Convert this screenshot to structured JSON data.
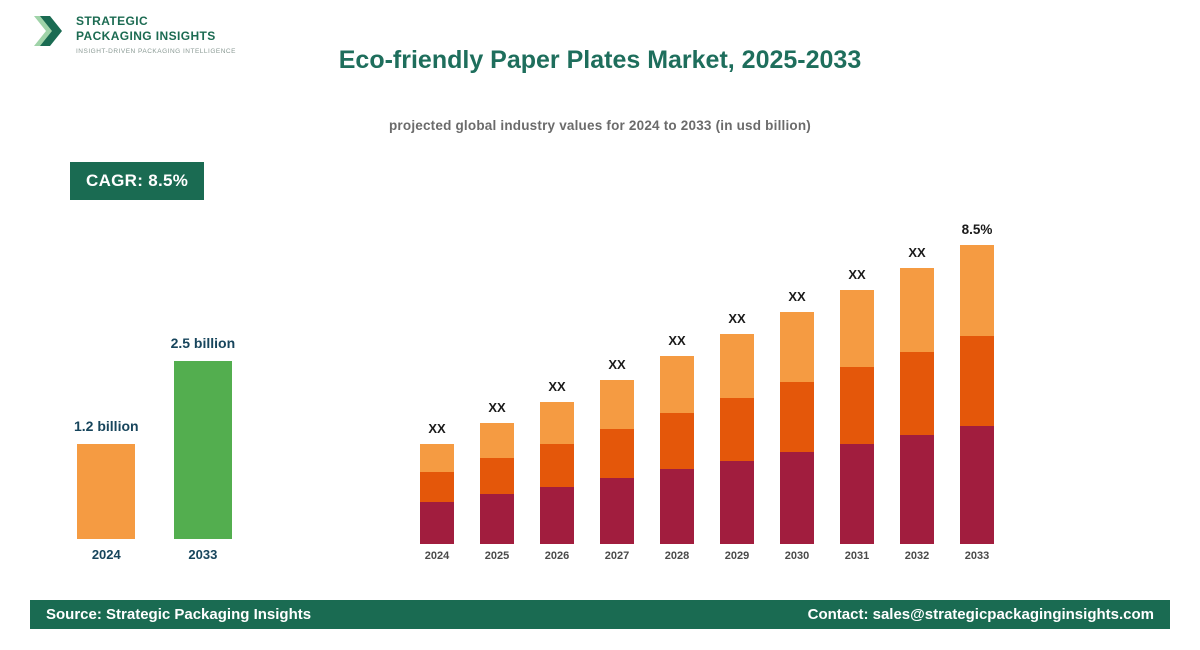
{
  "logo": {
    "line1": "STRATEGIC",
    "line2": "PACKAGING INSIGHTS",
    "tagline": "INSIGHT-DRIVEN PACKAGING INTELLIGENCE"
  },
  "header": {
    "title": "Eco-friendly Paper Plates Market, 2025-2033",
    "subtitle": "projected global industry values for 2024 to 2033 (in usd billion)"
  },
  "cagr_badge": "CAGR: 8.5%",
  "colors": {
    "brand_green": "#1a6b52",
    "title_teal": "#1e6e5c",
    "light_orange": "#f59b42",
    "dark_orange": "#e4570a",
    "maroon": "#a11d3e",
    "summary_green": "#53ae4f"
  },
  "summary_chart": {
    "type": "bar",
    "bars": [
      {
        "year": "2024",
        "label": "1.2 billion",
        "value": 1.2,
        "color": "#f59b42",
        "height": 95
      },
      {
        "year": "2033",
        "label": "2.5 billion",
        "value": 2.5,
        "color": "#53ae4f",
        "height": 178
      }
    ]
  },
  "chart_data": {
    "type": "bar",
    "stacked": true,
    "title": "Eco-friendly Paper Plates Market, 2025-2033",
    "subtitle": "projected global industry values for 2024 to 2033 (in usd billion)",
    "categories": [
      "2024",
      "2025",
      "2026",
      "2027",
      "2028",
      "2029",
      "2030",
      "2031",
      "2032",
      "2033"
    ],
    "series": [
      {
        "name": "bottom-maroon",
        "color": "#a11d3e",
        "values": [
          42,
          50,
          57,
          66,
          75,
          83,
          92,
          100,
          109,
          118
        ]
      },
      {
        "name": "middle-dark-orange",
        "color": "#e4570a",
        "values": [
          30,
          36,
          43,
          49,
          56,
          63,
          70,
          77,
          83,
          90
        ]
      },
      {
        "name": "top-light-orange",
        "color": "#f59b42",
        "values": [
          28,
          35,
          42,
          49,
          57,
          64,
          70,
          77,
          84,
          91
        ]
      }
    ],
    "totals_relative": [
      100,
      121,
      142,
      164,
      188,
      210,
      232,
      254,
      276,
      299
    ],
    "bar_labels": [
      "XX",
      "XX",
      "XX",
      "XX",
      "XX",
      "XX",
      "XX",
      "XX",
      "XX",
      "8.5%"
    ],
    "value_axis_visible": false,
    "grid": false,
    "legend": "none",
    "units": "relative px heights (actual values masked as XX in source image)"
  },
  "footer": {
    "source": "Source: Strategic Packaging Insights",
    "contact": "Contact: sales@strategicpackaginginsights.com"
  }
}
